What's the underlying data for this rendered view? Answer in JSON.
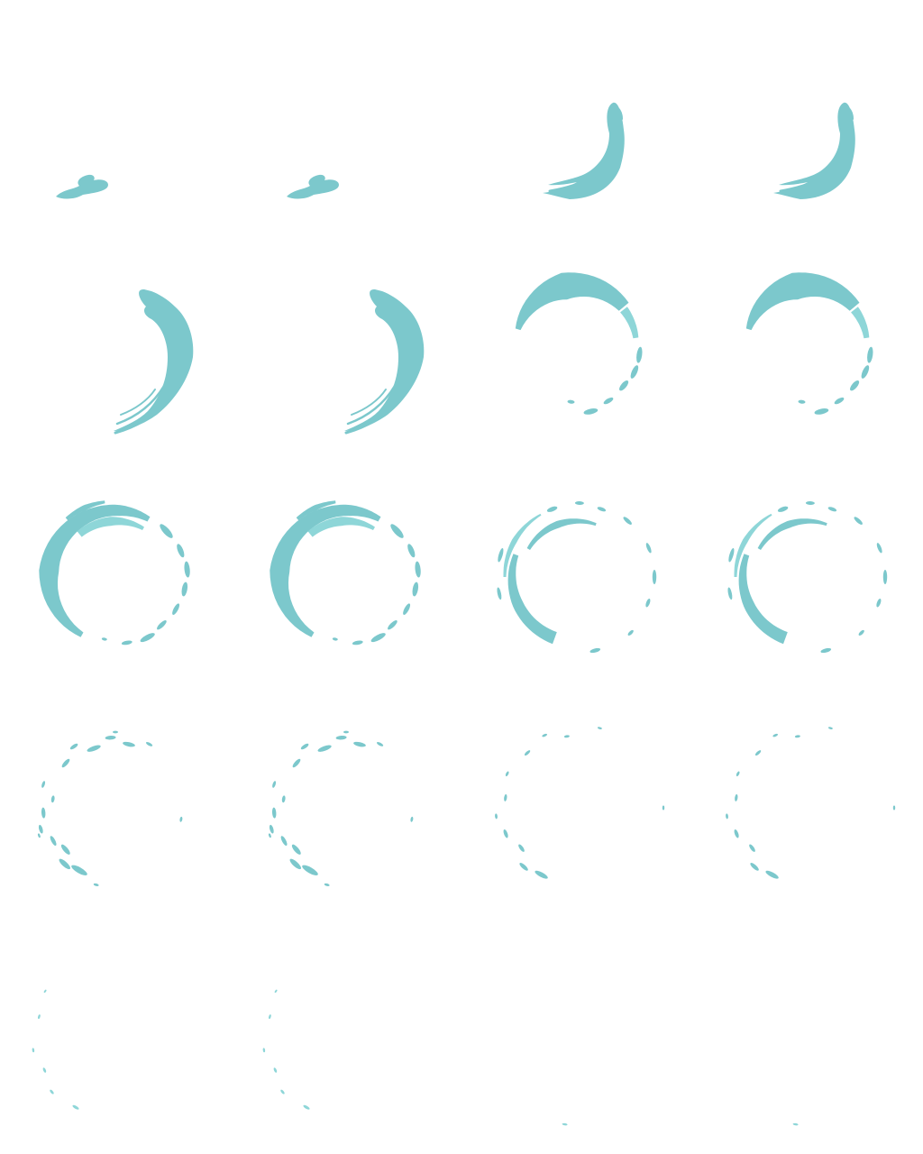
{
  "sprite_sheet": {
    "columns": 4,
    "rows": 5,
    "frame_count": 20,
    "colors": {
      "base": "#7cc8cc",
      "shade": "#6bb9bd",
      "light": "#8ed6d8"
    },
    "frames": [
      {
        "stage": 1
      },
      {
        "stage": 1
      },
      {
        "stage": 2
      },
      {
        "stage": 2
      },
      {
        "stage": 3
      },
      {
        "stage": 3
      },
      {
        "stage": 4
      },
      {
        "stage": 4
      },
      {
        "stage": 5
      },
      {
        "stage": 5
      },
      {
        "stage": 6
      },
      {
        "stage": 6
      },
      {
        "stage": 7
      },
      {
        "stage": 7
      },
      {
        "stage": 8
      },
      {
        "stage": 8
      },
      {
        "stage": 9
      },
      {
        "stage": 9
      },
      {
        "stage": 10
      },
      {
        "stage": 10
      }
    ]
  }
}
